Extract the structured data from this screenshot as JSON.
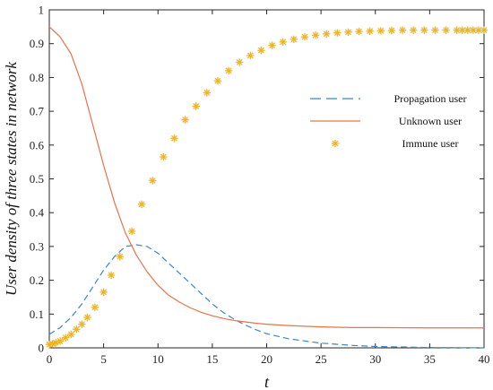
{
  "chart_data": {
    "type": "line",
    "title": "",
    "xlabel": "t",
    "ylabel": "User density of three states in network",
    "xlim": [
      0,
      40
    ],
    "ylim": [
      0,
      1
    ],
    "xticks": [
      0,
      5,
      10,
      15,
      20,
      25,
      30,
      35,
      40
    ],
    "xtick_labels": [
      "0",
      "5",
      "10",
      "15",
      "20",
      "25",
      "30",
      "35",
      "40"
    ],
    "yticks": [
      0,
      0.1,
      0.2,
      0.3,
      0.4,
      0.5,
      0.6,
      0.7,
      0.8,
      0.9,
      1
    ],
    "ytick_labels": [
      "0",
      "0.1",
      "0.2",
      "0.3",
      "0.4",
      "0.5",
      "0.6",
      "0.7",
      "0.8",
      "0.9",
      "1"
    ],
    "grid": false,
    "legend_position": "right",
    "series": [
      {
        "name": "Propagation user",
        "style": "dashed-line",
        "color": "#3a86c8",
        "x": [
          0,
          1,
          2,
          3,
          4,
          5,
          6,
          7,
          8,
          9,
          10,
          11,
          12,
          13,
          14,
          15,
          16,
          17,
          18,
          19,
          20,
          22,
          25,
          28,
          30,
          35,
          40
        ],
        "y": [
          0.04,
          0.06,
          0.09,
          0.13,
          0.18,
          0.23,
          0.27,
          0.3,
          0.305,
          0.3,
          0.28,
          0.25,
          0.22,
          0.19,
          0.16,
          0.13,
          0.105,
          0.085,
          0.068,
          0.054,
          0.042,
          0.027,
          0.014,
          0.007,
          0.004,
          0.001,
          0.0
        ]
      },
      {
        "name": "Unknown user",
        "style": "solid-line",
        "color": "#e8734a",
        "x": [
          0,
          1,
          2,
          3,
          4,
          5,
          6,
          7,
          8,
          9,
          10,
          11,
          12,
          13,
          14,
          15,
          16,
          17,
          18,
          19,
          20,
          22,
          25,
          28,
          30,
          35,
          40
        ],
        "y": [
          0.95,
          0.92,
          0.87,
          0.78,
          0.66,
          0.54,
          0.43,
          0.34,
          0.275,
          0.225,
          0.185,
          0.155,
          0.135,
          0.118,
          0.105,
          0.095,
          0.087,
          0.081,
          0.077,
          0.073,
          0.07,
          0.066,
          0.062,
          0.06,
          0.06,
          0.059,
          0.059
        ]
      },
      {
        "name": "Immune user",
        "style": "markers",
        "marker": "asterisk",
        "color": "#f0b323",
        "x": [
          0,
          0.3,
          0.6,
          1,
          1.5,
          2,
          2.5,
          3,
          3.5,
          4.2,
          5,
          5.7,
          6.5,
          7.6,
          8.5,
          9.5,
          10.5,
          11.5,
          12.5,
          13.5,
          14.5,
          15.5,
          16.5,
          17.5,
          18.5,
          19.5,
          20.5,
          21.5,
          22.5,
          23.5,
          24.5,
          25.5,
          26.5,
          27.5,
          28.5,
          29.5,
          30.5,
          31.5,
          32.5,
          33.5,
          34.5,
          35.5,
          36.5,
          37.5,
          38,
          38.5,
          39,
          39.5,
          40
        ],
        "y": [
          0.01,
          0.012,
          0.015,
          0.02,
          0.03,
          0.04,
          0.055,
          0.07,
          0.09,
          0.12,
          0.165,
          0.215,
          0.27,
          0.345,
          0.425,
          0.495,
          0.565,
          0.62,
          0.675,
          0.715,
          0.755,
          0.79,
          0.82,
          0.845,
          0.865,
          0.88,
          0.895,
          0.905,
          0.913,
          0.92,
          0.925,
          0.929,
          0.932,
          0.934,
          0.936,
          0.937,
          0.938,
          0.939,
          0.94,
          0.94,
          0.94,
          0.94,
          0.94,
          0.94,
          0.94,
          0.94,
          0.94,
          0.94,
          0.94
        ]
      }
    ]
  }
}
